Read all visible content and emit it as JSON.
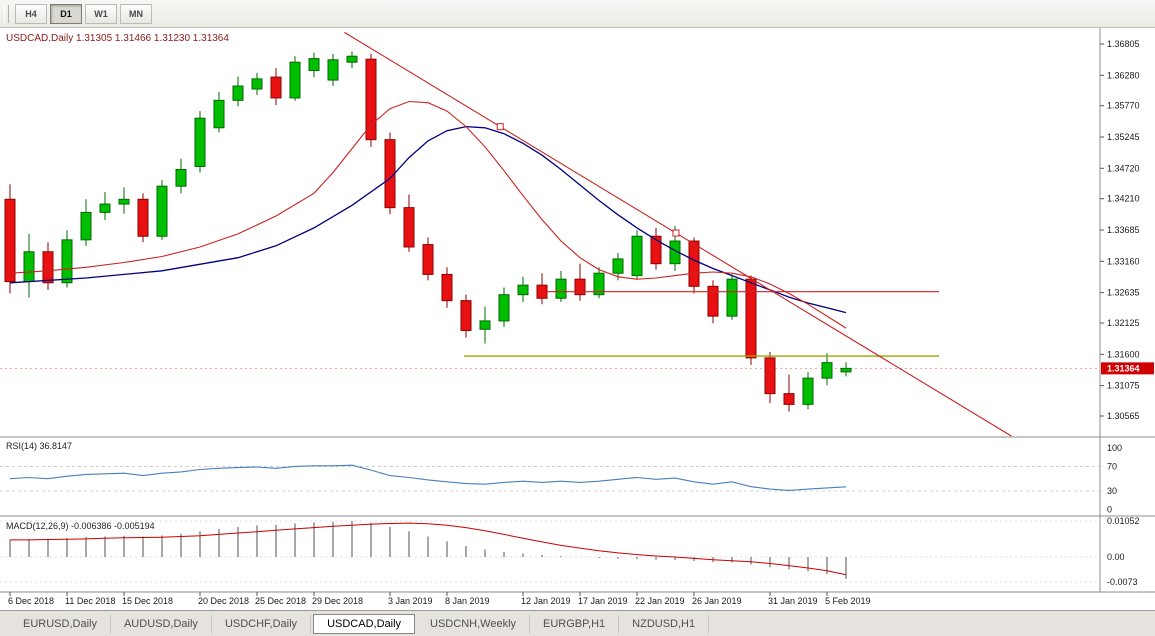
{
  "ui": {
    "timeframe_toolbar": {
      "buttons": [
        {
          "label": "H4",
          "active": false
        },
        {
          "label": "D1",
          "active": true
        },
        {
          "label": "W1",
          "active": false
        },
        {
          "label": "MN",
          "active": false
        }
      ]
    },
    "chart_header": {
      "symbol_label": "USDCAD,Daily",
      "open": "1.31305",
      "high": "1.31466",
      "low": "1.31230",
      "close": "1.31364"
    },
    "price_badge": "1.31364",
    "tabs": [
      {
        "label": "EURUSD,Daily",
        "active": false
      },
      {
        "label": "AUDUSD,Daily",
        "active": false
      },
      {
        "label": "USDCHF,Daily",
        "active": false
      },
      {
        "label": "USDCAD,Daily",
        "active": true
      },
      {
        "label": "USDCNH,Weekly",
        "active": false
      },
      {
        "label": "EURGBP,H1",
        "active": false
      },
      {
        "label": "NZDUSD,H1",
        "active": false
      }
    ],
    "colors": {
      "bull": "#00BE00",
      "bull_border": "#006A00",
      "bear": "#E81010",
      "bear_border": "#8F0000",
      "ma_fast": "#CC2222",
      "ma_slow": "#000080",
      "trendline": "#CC2222",
      "resistance": "#CC2222",
      "support": "#9FA300",
      "rsi": "#4A7EBB",
      "macd_hist": "#A8A8A8",
      "macd_signal": "#CC0000",
      "badge": "#D00000",
      "title": "#8B1A1A"
    }
  },
  "chart_data": [
    {
      "type": "candlestick",
      "title": "USDCAD,Daily",
      "ohlc_display": {
        "open": 1.31305,
        "high": 1.31466,
        "low": 1.3123,
        "close": 1.31364
      },
      "price_axis_ticks": [
        {
          "label": "1.36805",
          "value": 1.36805
        },
        {
          "label": "1.36280",
          "value": 1.3628
        },
        {
          "label": "1.35770",
          "value": 1.3577
        },
        {
          "label": "1.35245",
          "value": 1.35245
        },
        {
          "label": "1.34720",
          "value": 1.3472
        },
        {
          "label": "1.34210",
          "value": 1.3421
        },
        {
          "label": "1.33685",
          "value": 1.33685
        },
        {
          "label": "1.33160",
          "value": 1.3316
        },
        {
          "label": "1.32635",
          "value": 1.32635
        },
        {
          "label": "1.32125",
          "value": 1.32125
        },
        {
          "label": "1.31600",
          "value": 1.316
        },
        {
          "label": "1.31075",
          "value": 1.31075
        },
        {
          "label": "1.30565",
          "value": 1.30565
        }
      ],
      "date_axis_labels": [
        {
          "label": "6 Dec 2018",
          "candle_index": 0
        },
        {
          "label": "11 Dec 2018",
          "candle_index": 3
        },
        {
          "label": "15 Dec 2018",
          "candle_index": 6
        },
        {
          "label": "20 Dec 2018",
          "candle_index": 10
        },
        {
          "label": "25 Dec 2018",
          "candle_index": 13
        },
        {
          "label": "29 Dec 2018",
          "candle_index": 16
        },
        {
          "label": "3 Jan 2019",
          "candle_index": 20
        },
        {
          "label": "8 Jan 2019",
          "candle_index": 23
        },
        {
          "label": "12 Jan 2019",
          "candle_index": 27
        },
        {
          "label": "17 Jan 2019",
          "candle_index": 30
        },
        {
          "label": "22 Jan 2019",
          "candle_index": 33
        },
        {
          "label": "26 Jan 2019",
          "candle_index": 36
        },
        {
          "label": "31 Jan 2019",
          "candle_index": 40
        },
        {
          "label": "5 Feb 2019",
          "candle_index": 43
        }
      ],
      "candles": [
        [
          1.342,
          1.3445,
          1.3262,
          1.3282
        ],
        [
          1.3282,
          1.3362,
          1.3255,
          1.3332
        ],
        [
          1.3332,
          1.3348,
          1.3268,
          1.328
        ],
        [
          1.328,
          1.3368,
          1.3272,
          1.3352
        ],
        [
          1.3352,
          1.342,
          1.3342,
          1.3398
        ],
        [
          1.3398,
          1.3432,
          1.3385,
          1.3412
        ],
        [
          1.3412,
          1.344,
          1.3396,
          1.342
        ],
        [
          1.342,
          1.343,
          1.3348,
          1.3358
        ],
        [
          1.3358,
          1.3452,
          1.3352,
          1.3442
        ],
        [
          1.3442,
          1.3488,
          1.343,
          1.347
        ],
        [
          1.3475,
          1.3568,
          1.3465,
          1.3556
        ],
        [
          1.354,
          1.36,
          1.3532,
          1.3586
        ],
        [
          1.3586,
          1.3626,
          1.3576,
          1.361
        ],
        [
          1.3605,
          1.3632,
          1.3595,
          1.3622
        ],
        [
          1.3625,
          1.364,
          1.3578,
          1.359
        ],
        [
          1.359,
          1.366,
          1.3585,
          1.365
        ],
        [
          1.3636,
          1.3666,
          1.3625,
          1.3656
        ],
        [
          1.362,
          1.3664,
          1.361,
          1.3654
        ],
        [
          1.365,
          1.3668,
          1.364,
          1.366
        ],
        [
          1.3655,
          1.3664,
          1.3508,
          1.352
        ],
        [
          1.352,
          1.3532,
          1.3395,
          1.3406
        ],
        [
          1.3406,
          1.3428,
          1.3332,
          1.334
        ],
        [
          1.3344,
          1.3356,
          1.3284,
          1.3294
        ],
        [
          1.3294,
          1.3306,
          1.3238,
          1.325
        ],
        [
          1.325,
          1.326,
          1.3188,
          1.32
        ],
        [
          1.3202,
          1.324,
          1.3178,
          1.3216
        ],
        [
          1.3216,
          1.3272,
          1.3206,
          1.326
        ],
        [
          1.326,
          1.329,
          1.3248,
          1.3276
        ],
        [
          1.3276,
          1.3296,
          1.3244,
          1.3254
        ],
        [
          1.3254,
          1.33,
          1.3248,
          1.3286
        ],
        [
          1.3286,
          1.3312,
          1.325,
          1.326
        ],
        [
          1.326,
          1.3306,
          1.3254,
          1.3296
        ],
        [
          1.3296,
          1.333,
          1.3284,
          1.332
        ],
        [
          1.3292,
          1.3368,
          1.3286,
          1.3358
        ],
        [
          1.3358,
          1.3372,
          1.3302,
          1.3312
        ],
        [
          1.3312,
          1.3375,
          1.33,
          1.335
        ],
        [
          1.335,
          1.3356,
          1.3262,
          1.3274
        ],
        [
          1.3274,
          1.3284,
          1.3212,
          1.3224
        ],
        [
          1.3224,
          1.3294,
          1.3218,
          1.3286
        ],
        [
          1.3286,
          1.3292,
          1.3142,
          1.3154
        ],
        [
          1.3154,
          1.3164,
          1.3078,
          1.3094
        ],
        [
          1.3094,
          1.3126,
          1.3064,
          1.3076
        ],
        [
          1.3076,
          1.313,
          1.3068,
          1.312
        ],
        [
          1.312,
          1.3162,
          1.3108,
          1.3146
        ],
        [
          1.31305,
          1.31466,
          1.3123,
          1.31364
        ]
      ],
      "overlays": {
        "ma_fast_red": [
          [
            0,
            1.3296
          ],
          [
            2,
            1.33
          ],
          [
            4,
            1.3306
          ],
          [
            6,
            1.3314
          ],
          [
            8,
            1.3324
          ],
          [
            10,
            1.334
          ],
          [
            12,
            1.3362
          ],
          [
            14,
            1.3392
          ],
          [
            16,
            1.343
          ],
          [
            17,
            1.3465
          ],
          [
            18,
            1.3505
          ],
          [
            19,
            1.3545
          ],
          [
            20,
            1.3572
          ],
          [
            21,
            1.3584
          ],
          [
            22,
            1.3582
          ],
          [
            23,
            1.3568
          ],
          [
            24,
            1.3542
          ],
          [
            25,
            1.3508
          ],
          [
            26,
            1.3468
          ],
          [
            27,
            1.3426
          ],
          [
            28,
            1.3386
          ],
          [
            29,
            1.335
          ],
          [
            30,
            1.3322
          ],
          [
            31,
            1.3302
          ],
          [
            32,
            1.329
          ],
          [
            33,
            1.3286
          ],
          [
            34,
            1.3288
          ],
          [
            35,
            1.3292
          ],
          [
            36,
            1.3296
          ],
          [
            37,
            1.3298
          ],
          [
            38,
            1.3296
          ],
          [
            39,
            1.329
          ],
          [
            40,
            1.3278
          ],
          [
            41,
            1.3262
          ],
          [
            42,
            1.3244
          ],
          [
            43,
            1.3224
          ],
          [
            44,
            1.3204
          ]
        ],
        "ma_slow_navy": [
          [
            0,
            1.328
          ],
          [
            4,
            1.3288
          ],
          [
            8,
            1.33
          ],
          [
            12,
            1.3322
          ],
          [
            14,
            1.3342
          ],
          [
            16,
            1.3372
          ],
          [
            18,
            1.341
          ],
          [
            20,
            1.3455
          ],
          [
            21,
            1.349
          ],
          [
            22,
            1.3518
          ],
          [
            23,
            1.3535
          ],
          [
            24,
            1.3542
          ],
          [
            25,
            1.354
          ],
          [
            26,
            1.353
          ],
          [
            27,
            1.3514
          ],
          [
            28,
            1.3494
          ],
          [
            29,
            1.347
          ],
          [
            30,
            1.3444
          ],
          [
            31,
            1.3418
          ],
          [
            32,
            1.3394
          ],
          [
            33,
            1.3372
          ],
          [
            34,
            1.3352
          ],
          [
            35,
            1.3334
          ],
          [
            36,
            1.3318
          ],
          [
            37,
            1.3304
          ],
          [
            38,
            1.3292
          ],
          [
            39,
            1.328
          ],
          [
            40,
            1.3268
          ],
          [
            41,
            1.3256
          ],
          [
            42,
            1.3246
          ],
          [
            43,
            1.3238
          ],
          [
            44,
            1.323
          ]
        ],
        "descending_trendline": {
          "anchor1": {
            "index": 17.6,
            "price": 1.37
          },
          "anchor2": {
            "index": 52.7,
            "price": 1.3023
          },
          "handle_indices": [
            25.8,
            35.05
          ]
        },
        "horizontal_resistance_red": {
          "price": 1.3265,
          "from_index": 28.2,
          "to_index": 48.9
        },
        "horizontal_support_olive": {
          "price": 1.3157,
          "from_index": 23.9,
          "to_index": 48.9
        },
        "bid_line_price": 1.31364
      }
    },
    {
      "type": "line",
      "indicator": "RSI",
      "label": "RSI(14)",
      "current_value_display": "36.8147",
      "axis_levels": [
        100,
        70,
        30,
        0
      ],
      "dashed_levels": [
        70,
        30
      ],
      "values": [
        50,
        52,
        50,
        54,
        57,
        58,
        59,
        55,
        59,
        61,
        65,
        67,
        68,
        69,
        67,
        70,
        71,
        71,
        72,
        64,
        55,
        52,
        48,
        45,
        42,
        41,
        44,
        46,
        44,
        46,
        44,
        46,
        49,
        52,
        49,
        51,
        45,
        41,
        45,
        37,
        33,
        31,
        33,
        35,
        36.8
      ]
    },
    {
      "type": "macd",
      "indicator": "MACD",
      "label": "MACD(12,26,9)",
      "value_display": "-0.006386",
      "signal_display": "-0.005194",
      "axis_levels": [
        0.01052,
        0,
        -0.0073
      ],
      "axis_levels_display": [
        "0.01052",
        "0.00",
        "-0.0073"
      ],
      "histogram": [
        0.005,
        0.0052,
        0.0053,
        0.0055,
        0.0058,
        0.006,
        0.0062,
        0.006,
        0.0063,
        0.0068,
        0.0075,
        0.0082,
        0.0088,
        0.0092,
        0.0094,
        0.0098,
        0.0101,
        0.0103,
        0.0105,
        0.01,
        0.0088,
        0.0075,
        0.006,
        0.0046,
        0.0032,
        0.0022,
        0.0015,
        0.001,
        0.0006,
        0.0003,
        0.0,
        -0.0003,
        -0.0005,
        -0.0006,
        -0.0008,
        -0.0009,
        -0.0012,
        -0.0015,
        -0.0016,
        -0.0022,
        -0.003,
        -0.0036,
        -0.0042,
        -0.005,
        -0.0064
      ],
      "signal": [
        0.005,
        0.005,
        0.0051,
        0.0052,
        0.0053,
        0.0055,
        0.0056,
        0.0057,
        0.0058,
        0.006,
        0.0062,
        0.0066,
        0.007,
        0.0074,
        0.0078,
        0.0082,
        0.0086,
        0.009,
        0.0093,
        0.0096,
        0.0098,
        0.0099,
        0.0097,
        0.0093,
        0.0086,
        0.0077,
        0.0066,
        0.0055,
        0.0044,
        0.0034,
        0.0026,
        0.0018,
        0.0012,
        0.0007,
        0.0003,
        0.0,
        -0.0004,
        -0.0008,
        -0.0011,
        -0.0014,
        -0.0019,
        -0.0025,
        -0.0032,
        -0.004,
        -0.0052
      ]
    }
  ]
}
